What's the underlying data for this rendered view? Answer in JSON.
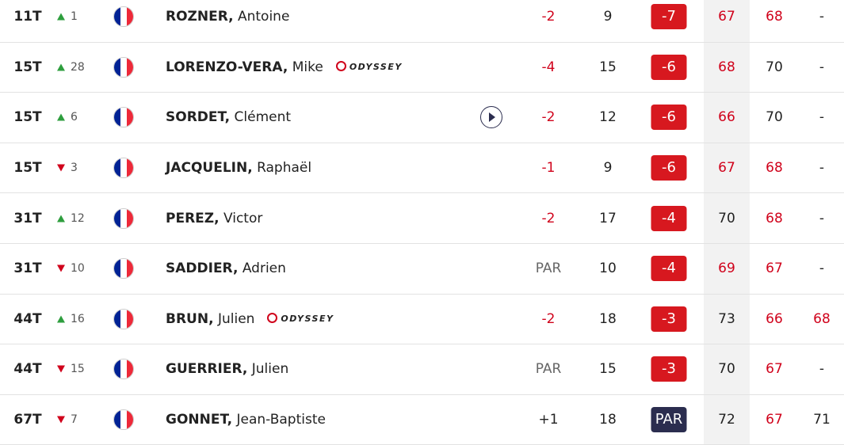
{
  "leaderboard": {
    "rows": [
      {
        "position": "11T",
        "movement": "up",
        "move": "1",
        "last_name": "ROZNER,",
        "first_name": "Antoine",
        "sponsor": null,
        "today": "-2",
        "thru": "9",
        "total": "-7",
        "rounds": [
          "67",
          "68",
          "-"
        ],
        "round_colors": [
          "#d0021b",
          "#d0021b",
          "#222222"
        ]
      },
      {
        "position": "15T",
        "movement": "up",
        "move": "28",
        "last_name": "LORENZO-VERA,",
        "first_name": "Mike",
        "sponsor": "ODYSSEY",
        "today": "-4",
        "thru": "15",
        "total": "-6",
        "rounds": [
          "68",
          "70",
          "-"
        ],
        "round_colors": [
          "#d0021b",
          "#222222",
          "#222222"
        ]
      },
      {
        "position": "15T",
        "movement": "up",
        "move": "6",
        "last_name": "SORDET,",
        "first_name": "Clément",
        "sponsor": null,
        "video": true,
        "today": "-2",
        "thru": "12",
        "total": "-6",
        "rounds": [
          "66",
          "70",
          "-"
        ],
        "round_colors": [
          "#d0021b",
          "#222222",
          "#222222"
        ]
      },
      {
        "position": "15T",
        "movement": "down",
        "move": "3",
        "last_name": "JACQUELIN,",
        "first_name": "Raphaël",
        "sponsor": null,
        "today": "-1",
        "thru": "9",
        "total": "-6",
        "rounds": [
          "67",
          "68",
          "-"
        ],
        "round_colors": [
          "#d0021b",
          "#d0021b",
          "#222222"
        ]
      },
      {
        "position": "31T",
        "movement": "up",
        "move": "12",
        "last_name": "PEREZ,",
        "first_name": "Victor",
        "sponsor": null,
        "today": "-2",
        "thru": "17",
        "total": "-4",
        "rounds": [
          "70",
          "68",
          "-"
        ],
        "round_colors": [
          "#222222",
          "#d0021b",
          "#222222"
        ]
      },
      {
        "position": "31T",
        "movement": "down",
        "move": "10",
        "last_name": "SADDIER,",
        "first_name": "Adrien",
        "sponsor": null,
        "today": "PAR",
        "thru": "10",
        "total": "-4",
        "rounds": [
          "69",
          "67",
          "-"
        ],
        "round_colors": [
          "#d0021b",
          "#d0021b",
          "#222222"
        ]
      },
      {
        "position": "44T",
        "movement": "up",
        "move": "16",
        "last_name": "BRUN,",
        "first_name": "Julien",
        "sponsor": "ODYSSEY",
        "today": "-2",
        "thru": "18",
        "total": "-3",
        "rounds": [
          "73",
          "66",
          "68"
        ],
        "round_colors": [
          "#222222",
          "#d0021b",
          "#d0021b"
        ]
      },
      {
        "position": "44T",
        "movement": "down",
        "move": "15",
        "last_name": "GUERRIER,",
        "first_name": "Julien",
        "sponsor": null,
        "today": "PAR",
        "thru": "15",
        "total": "-3",
        "rounds": [
          "70",
          "67",
          "-"
        ],
        "round_colors": [
          "#222222",
          "#d0021b",
          "#222222"
        ]
      },
      {
        "position": "67T",
        "movement": "down",
        "move": "7",
        "last_name": "GONNET,",
        "first_name": "Jean-Baptiste",
        "sponsor": null,
        "today": "+1",
        "thru": "18",
        "total": "PAR",
        "rounds": [
          "72",
          "67",
          "71"
        ],
        "round_colors": [
          "#222222",
          "#d0021b",
          "#222222"
        ]
      }
    ]
  }
}
